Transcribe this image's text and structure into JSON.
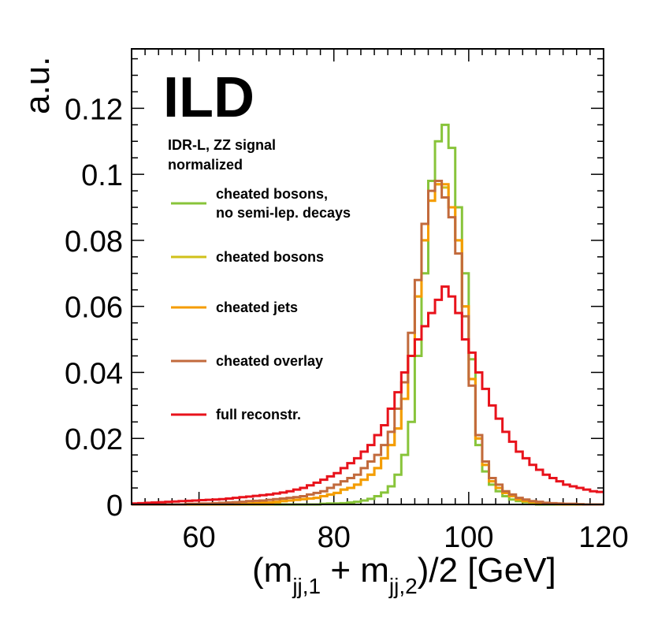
{
  "chart_data": {
    "type": "line",
    "title": "",
    "brand_label": "ILD",
    "info_lines": [
      "IDR-L, ZZ signal",
      "normalized"
    ],
    "xlabel": {
      "main1": "(m",
      "sub1": "jj,1",
      "mid": " + m",
      "sub2": "jj,2",
      "tail": ")/2 [GeV]"
    },
    "ylabel": "a.u.",
    "xlim": [
      50,
      120
    ],
    "ylim": [
      0,
      0.138
    ],
    "x_ticks": [
      60,
      80,
      100,
      120
    ],
    "x_tick_labels": [
      "60",
      "80",
      "100",
      "120"
    ],
    "y_ticks": [
      0,
      0.02,
      0.04,
      0.06,
      0.08,
      0.1,
      0.12
    ],
    "y_tick_labels": [
      "0",
      "0.02",
      "0.04",
      "0.06",
      "0.08",
      "0.1",
      "0.12"
    ],
    "bin_width": 1,
    "bin_edges_start": 50,
    "series": [
      {
        "name": "cheated bosons,",
        "name_line2": "no semi-lep. decays",
        "color": "#88c43a",
        "values": [
          0,
          0,
          0,
          0,
          0,
          0,
          0,
          0,
          0,
          0,
          0,
          0,
          0,
          0,
          0,
          0,
          0,
          0,
          0,
          0,
          0,
          0,
          0,
          0,
          0,
          0,
          0,
          0,
          0.0002,
          0.0003,
          0.0003,
          0.0004,
          0.0006,
          0.0008,
          0.0012,
          0.0017,
          0.0025,
          0.0036,
          0.0055,
          0.009,
          0.015,
          0.025,
          0.045,
          0.07,
          0.098,
          0.11,
          0.115,
          0.108,
          0.09,
          0.07,
          0.044,
          0.018,
          0.01,
          0.006,
          0.004,
          0.0025,
          0.0015,
          0.001,
          0.0007,
          0.0005,
          0,
          0,
          0,
          0,
          0,
          0,
          0,
          0,
          0,
          0
        ]
      },
      {
        "name": "cheated bosons",
        "color": "#d0c11a",
        "values": [
          0,
          0,
          0,
          0,
          0,
          0,
          0,
          0,
          0,
          0,
          0,
          0,
          0,
          0,
          0,
          0,
          0,
          0,
          0,
          0,
          0,
          0.0005,
          0.001,
          0.0012,
          0.0014,
          0.0016,
          0.0018,
          0.002,
          0.0025,
          0.003,
          0.0035,
          0.0045,
          0.005,
          0.006,
          0.0075,
          0.009,
          0.011,
          0.014,
          0.018,
          0.023,
          0.032,
          0.045,
          0.063,
          0.08,
          0.092,
          0.097,
          0.096,
          0.09,
          0.08,
          0.06,
          0.038,
          0.02,
          0.012,
          0.007,
          0.005,
          0.0035,
          0.0025,
          0.0015,
          0.001,
          0.0005,
          0.0003,
          0.0002,
          0.0001,
          0,
          0,
          0,
          0,
          0,
          0,
          0
        ]
      },
      {
        "name": "cheated jets",
        "color": "#f59c00",
        "values": [
          0,
          0,
          0,
          0,
          0,
          0,
          0,
          0,
          0,
          0,
          0,
          0,
          0,
          0,
          0,
          0,
          0.0002,
          0.0003,
          0.0004,
          0.0005,
          0.0006,
          0.0008,
          0.001,
          0.0012,
          0.0014,
          0.0016,
          0.0018,
          0.002,
          0.0025,
          0.003,
          0.0035,
          0.0045,
          0.005,
          0.006,
          0.0075,
          0.009,
          0.011,
          0.014,
          0.018,
          0.023,
          0.032,
          0.045,
          0.063,
          0.08,
          0.092,
          0.097,
          0.097,
          0.09,
          0.08,
          0.06,
          0.038,
          0.02,
          0.012,
          0.007,
          0.005,
          0.0035,
          0.0025,
          0.0015,
          0.001,
          0.0008,
          0.0005,
          0.0003,
          0.0002,
          0.0001,
          0,
          0.0001,
          0,
          0,
          0,
          0
        ]
      },
      {
        "name": "cheated overlay",
        "color": "#c26a3c",
        "values": [
          0,
          0,
          0,
          0,
          0,
          0,
          0,
          0,
          0.0002,
          0.0002,
          0.0003,
          0.0003,
          0.0004,
          0.0005,
          0.0006,
          0.0007,
          0.0008,
          0.001,
          0.0011,
          0.0012,
          0.0014,
          0.0016,
          0.0018,
          0.002,
          0.0022,
          0.0025,
          0.003,
          0.0035,
          0.004,
          0.005,
          0.006,
          0.007,
          0.008,
          0.009,
          0.011,
          0.013,
          0.015,
          0.018,
          0.022,
          0.029,
          0.037,
          0.052,
          0.068,
          0.085,
          0.095,
          0.098,
          0.093,
          0.087,
          0.076,
          0.057,
          0.036,
          0.021,
          0.013,
          0.008,
          0.006,
          0.004,
          0.003,
          0.002,
          0.0015,
          0.001,
          0.0008,
          0.0005,
          0.0004,
          0.0003,
          0.0002,
          0.0002,
          0.0001,
          0,
          0,
          0
        ]
      },
      {
        "name": "full reconstr.",
        "color": "#e8121b",
        "values": [
          0.0003,
          0.0004,
          0.0005,
          0.0006,
          0.0007,
          0.0008,
          0.0009,
          0.001,
          0.0011,
          0.0012,
          0.0013,
          0.0014,
          0.0015,
          0.0016,
          0.0018,
          0.002,
          0.0022,
          0.0024,
          0.0026,
          0.0028,
          0.003,
          0.0033,
          0.0036,
          0.004,
          0.0045,
          0.005,
          0.0058,
          0.0066,
          0.0075,
          0.0085,
          0.0095,
          0.011,
          0.0125,
          0.014,
          0.016,
          0.018,
          0.021,
          0.024,
          0.029,
          0.034,
          0.04,
          0.045,
          0.05,
          0.054,
          0.058,
          0.062,
          0.066,
          0.063,
          0.058,
          0.05,
          0.046,
          0.04,
          0.035,
          0.03,
          0.026,
          0.022,
          0.019,
          0.016,
          0.014,
          0.012,
          0.0105,
          0.009,
          0.008,
          0.007,
          0.006,
          0.0055,
          0.005,
          0.0045,
          0.004,
          0.0038
        ]
      }
    ]
  }
}
